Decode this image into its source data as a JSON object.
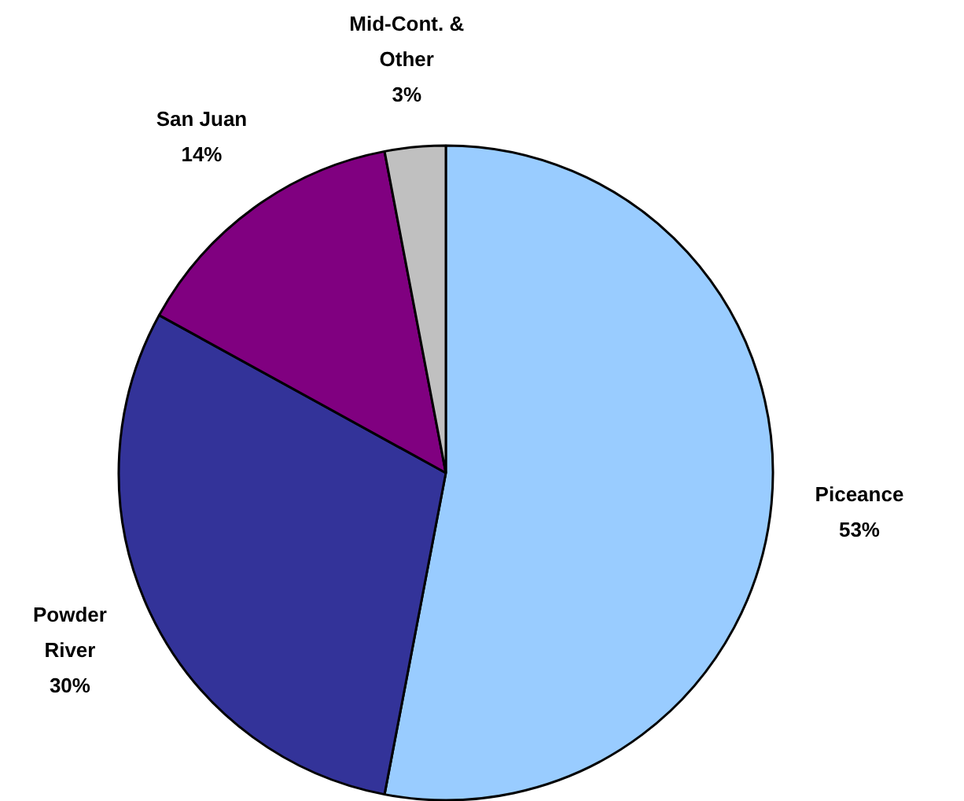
{
  "chart_data": {
    "type": "pie",
    "categories": [
      "Piceance",
      "Powder River",
      "San Juan",
      "Mid-Cont. & Other"
    ],
    "values": [
      53,
      30,
      14,
      3
    ],
    "colors": [
      "#99ccff",
      "#333399",
      "#800080",
      "#c0c0c0"
    ],
    "value_labels": [
      "53%",
      "30%",
      "14%",
      "3%"
    ]
  }
}
